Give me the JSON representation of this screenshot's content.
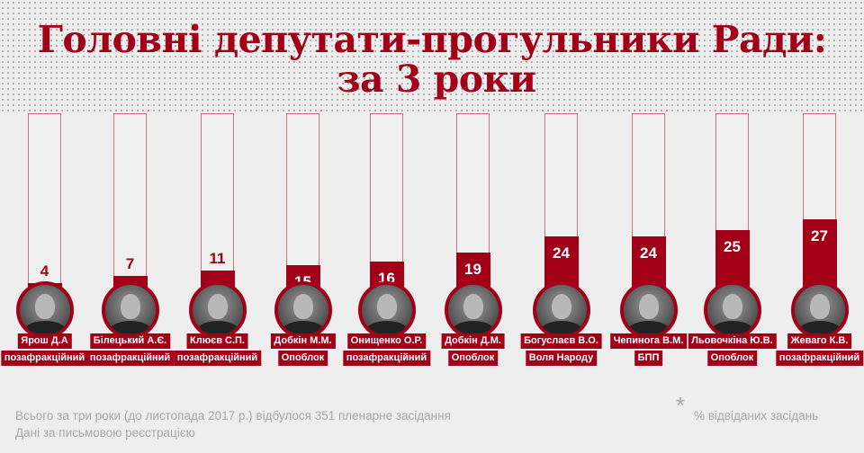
{
  "title": {
    "line1": "Головні депутати-прогульники Ради:",
    "line2": "за 3 роки"
  },
  "colors": {
    "accent": "#a20018",
    "outline": "#d3707f",
    "background": "#eeeeee",
    "footnote": "#a8a8a8"
  },
  "deputies": [
    {
      "name": "Ярош Д.А",
      "faction": "позафракційний",
      "value": "4"
    },
    {
      "name": "Білецький А.Є.",
      "faction": "позафракційний",
      "value": "7"
    },
    {
      "name": "Клюєв С.П.",
      "faction": "позафракційний",
      "value": "11"
    },
    {
      "name": "Добкін М.М.",
      "faction": "Опоблок",
      "value": "15"
    },
    {
      "name": "Онищенко О.Р.",
      "faction": "позафракційний",
      "value": "16"
    },
    {
      "name": "Добкін Д.М.",
      "faction": "Опоблок",
      "value": "19"
    },
    {
      "name": "Богуслаєв В.О.",
      "faction": "Воля Народу",
      "value": "24"
    },
    {
      "name": "Чепинога В.М.",
      "faction": "БПП",
      "value": "24"
    },
    {
      "name": "Льовочкіна Ю.В.",
      "faction": "Опоблок",
      "value": "25"
    },
    {
      "name": "Жеваго К.В.",
      "faction": "позафракційний",
      "value": "27"
    }
  ],
  "footer": {
    "note1": "Всього за три роки (до листопада 2017 р.) відбулося 351 пленарне засідання",
    "note2": "Дані за письмовою реєстрацією",
    "asterisk": "*",
    "legend": "% відвіданих засідань"
  },
  "chart_data": {
    "type": "bar",
    "title": "Головні депутати-прогульники Ради: за 3 роки",
    "categories": [
      "Ярош Д.А",
      "Білецький А.Є.",
      "Клюєв С.П.",
      "Добкін М.М.",
      "Онищенко О.Р.",
      "Добкін Д.М.",
      "Богуслаєв В.О.",
      "Чепинога В.М.",
      "Льовочкіна Ю.В.",
      "Жеваго К.В."
    ],
    "factions": [
      "позафракційний",
      "позафракційний",
      "позафракційний",
      "Опоблок",
      "позафракційний",
      "Опоблок",
      "Воля Народу",
      "БПП",
      "Опоблок",
      "позафракційний"
    ],
    "values": [
      4,
      7,
      11,
      15,
      16,
      19,
      24,
      24,
      25,
      27
    ],
    "xlabel": "",
    "ylabel": "% відвіданих засідань",
    "ylim": [
      0,
      100
    ],
    "grid": false,
    "legend": "% відвіданих засідань (bottom right)",
    "annotations": [
      "Всього за три роки (до листопада 2017 р.) відбулося 351 пленарне засідання",
      "Дані за письмовою реєстрацією"
    ]
  }
}
